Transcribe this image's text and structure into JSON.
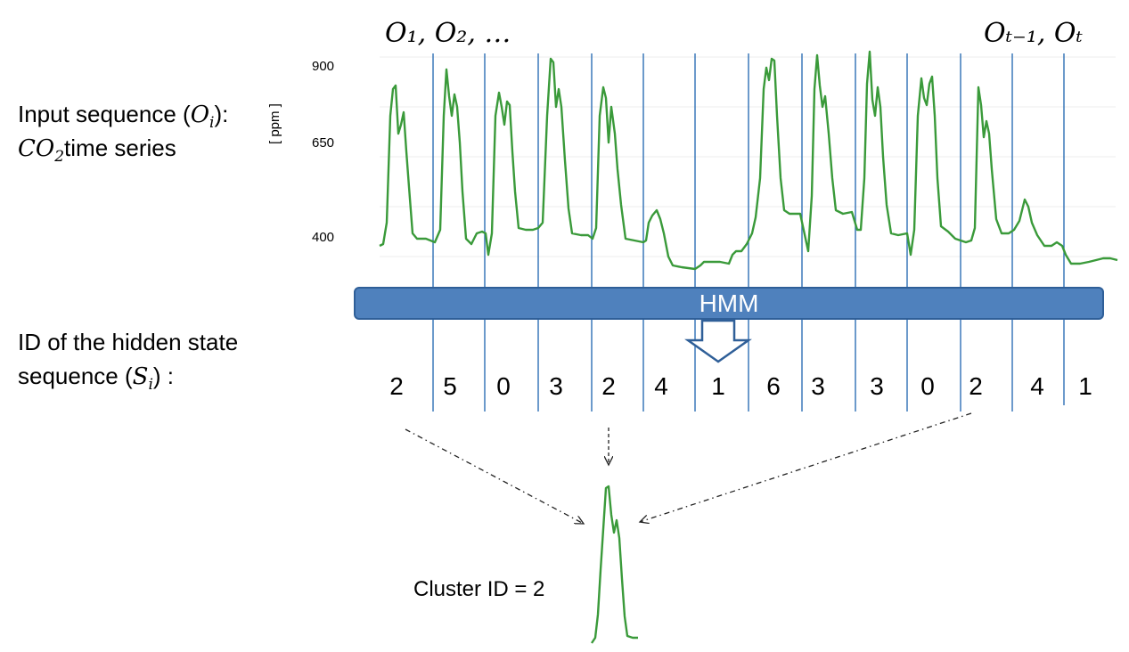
{
  "input_label": {
    "line1_prefix": "Input sequence (",
    "line1_var": "O",
    "line1_sub": "i",
    "line1_suffix": "):",
    "line2_var": "CO",
    "line2_sub": "2",
    "line2_suffix": "time series"
  },
  "obs_left": "O₁, O₂, …",
  "obs_right": "Oₜ₋₁, Oₜ",
  "y_unit": "[ ppm ]",
  "y_ticks": [
    900,
    650,
    400
  ],
  "hmm_label": "HMM",
  "hidden_label": {
    "line1": "ID of the hidden state",
    "line2_prefix": "sequence (",
    "line2_var": "S",
    "line2_sub": "i",
    "line2_suffix": ") :"
  },
  "state_ids": [
    "2",
    "5",
    "0",
    "3",
    "2",
    "4",
    "1",
    "6",
    "3",
    "3",
    "0",
    "2",
    "4",
    "1"
  ],
  "cluster_label": "Cluster ID = 2",
  "colors": {
    "series": "#3a9a3a",
    "segment_line": "#2e6fb5",
    "hmm_fill": "#4f81bd",
    "arrow": "#2f5f98"
  }
}
